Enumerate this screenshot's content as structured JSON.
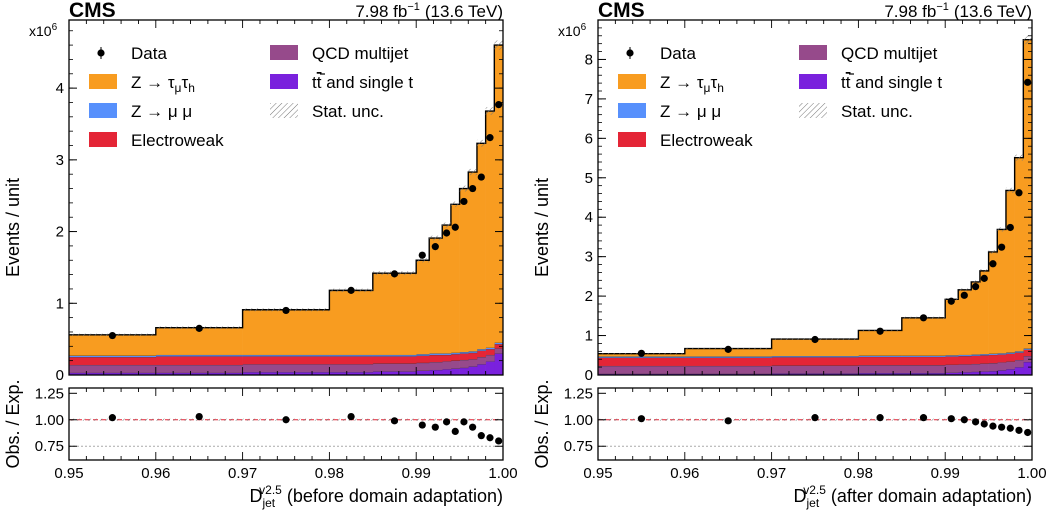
{
  "colors": {
    "ztautau": "#f89c20",
    "zmumu": "#5790fc",
    "electroweak": "#e42536",
    "qcd": "#964a8b",
    "ttbar": "#7a21dd",
    "data": "#000000",
    "ref_line": "#e42536",
    "grid_line": "#aaaaaa"
  },
  "legend": {
    "data": "Data",
    "ztautau": "Z → τ",
    "ztautau_sub1": "μ",
    "ztautau_tau2": "τ",
    "ztautau_sub2": "h",
    "zmumu": "Z → μ μ",
    "electroweak": "Electroweak",
    "qcd": "QCD multijet",
    "ttbar_t": "t",
    "ttbar_tbar": "t",
    "ttbar_rest": " and single t",
    "statunc": "Stat. unc."
  },
  "chart_data": [
    {
      "type": "bar",
      "stacked_histogram_with_ratio": true,
      "experiment": "CMS",
      "lumi": "7.98 fb",
      "lumi_exp": "−1",
      "energy": "(13.6 TeV)",
      "ylabel": "Events / unit",
      "yexponent_base": "x10",
      "yexponent": "6",
      "ratio_ylabel": "Obs. / Exp.",
      "xlabel_main": "D",
      "xlabel_sub": "jet",
      "xlabel_sup": "v2.5",
      "xlabel_rest": " (before domain adaptation)",
      "xlim": [
        0.95,
        1.0
      ],
      "ylim": [
        0,
        4.95
      ],
      "ratio_ylim": [
        0.62,
        1.3
      ],
      "xticks": [
        "0.95",
        "0.96",
        "0.97",
        "0.98",
        "0.99",
        "1.00"
      ],
      "yticks": [
        "0",
        "1",
        "2",
        "3",
        "4"
      ],
      "ratio_yticks": [
        "0.75",
        "1.00",
        "1.25"
      ],
      "bin_edges": [
        0.95,
        0.96,
        0.97,
        0.98,
        0.985,
        0.99,
        0.9915,
        0.993,
        0.994,
        0.995,
        0.996,
        0.997,
        0.998,
        0.999,
        1.0
      ],
      "series": [
        {
          "key": "ttbar",
          "values": [
            0.03,
            0.03,
            0.04,
            0.04,
            0.05,
            0.06,
            0.07,
            0.08,
            0.09,
            0.1,
            0.12,
            0.15,
            0.19,
            0.3
          ]
        },
        {
          "key": "qcd",
          "values": [
            0.11,
            0.11,
            0.11,
            0.11,
            0.11,
            0.11,
            0.11,
            0.11,
            0.11,
            0.11,
            0.1,
            0.1,
            0.09,
            0.07
          ]
        },
        {
          "key": "electroweak",
          "values": [
            0.11,
            0.12,
            0.11,
            0.11,
            0.1,
            0.1,
            0.1,
            0.09,
            0.09,
            0.09,
            0.09,
            0.09,
            0.08,
            0.06
          ]
        },
        {
          "key": "zmumu",
          "values": [
            0.02,
            0.02,
            0.02,
            0.02,
            0.02,
            0.02,
            0.02,
            0.02,
            0.02,
            0.02,
            0.02,
            0.02,
            0.02,
            0.02
          ]
        },
        {
          "key": "ztautau",
          "values": [
            0.29,
            0.38,
            0.63,
            0.9,
            1.14,
            1.31,
            1.61,
            1.79,
            2.07,
            2.28,
            2.5,
            2.87,
            3.3,
            4.15
          ]
        }
      ],
      "data_points": [
        {
          "x": 0.955,
          "y": 0.55
        },
        {
          "x": 0.965,
          "y": 0.65
        },
        {
          "x": 0.975,
          "y": 0.9
        },
        {
          "x": 0.9825,
          "y": 1.18
        },
        {
          "x": 0.9875,
          "y": 1.41
        },
        {
          "x": 0.9907,
          "y": 1.67
        },
        {
          "x": 0.9922,
          "y": 1.79
        },
        {
          "x": 0.9935,
          "y": 1.98
        },
        {
          "x": 0.9945,
          "y": 2.06
        },
        {
          "x": 0.9955,
          "y": 2.42
        },
        {
          "x": 0.9965,
          "y": 2.6
        },
        {
          "x": 0.9975,
          "y": 2.76
        },
        {
          "x": 0.9985,
          "y": 3.31
        },
        {
          "x": 0.9995,
          "y": 3.77
        }
      ],
      "ratio_points": [
        {
          "x": 0.955,
          "y": 1.02
        },
        {
          "x": 0.965,
          "y": 1.03
        },
        {
          "x": 0.975,
          "y": 1.0
        },
        {
          "x": 0.9825,
          "y": 1.03
        },
        {
          "x": 0.9875,
          "y": 0.99
        },
        {
          "x": 0.9907,
          "y": 0.95
        },
        {
          "x": 0.9922,
          "y": 0.93
        },
        {
          "x": 0.9935,
          "y": 0.98
        },
        {
          "x": 0.9945,
          "y": 0.89
        },
        {
          "x": 0.9955,
          "y": 0.98
        },
        {
          "x": 0.9965,
          "y": 0.93
        },
        {
          "x": 0.9975,
          "y": 0.85
        },
        {
          "x": 0.9985,
          "y": 0.83
        },
        {
          "x": 0.9995,
          "y": 0.8
        }
      ]
    },
    {
      "type": "bar",
      "stacked_histogram_with_ratio": true,
      "experiment": "CMS",
      "lumi": "7.98 fb",
      "lumi_exp": "−1",
      "energy": "(13.6 TeV)",
      "ylabel": "Events / unit",
      "yexponent_base": "x10",
      "yexponent": "6",
      "ratio_ylabel": "Obs. / Exp.",
      "xlabel_main": "D",
      "xlabel_sub": "jet",
      "xlabel_sup": "v2.5",
      "xlabel_rest": " (after domain adaptation)",
      "xlim": [
        0.95,
        1.0
      ],
      "ylim": [
        0,
        9.0
      ],
      "ratio_ylim": [
        0.62,
        1.3
      ],
      "xticks": [
        "0.95",
        "0.96",
        "0.97",
        "0.98",
        "0.99",
        "1.00"
      ],
      "yticks": [
        "0",
        "1",
        "2",
        "3",
        "4",
        "5",
        "6",
        "7",
        "8"
      ],
      "ratio_yticks": [
        "0.75",
        "1.00",
        "1.25"
      ],
      "bin_edges": [
        0.95,
        0.96,
        0.97,
        0.98,
        0.985,
        0.99,
        0.9915,
        0.993,
        0.994,
        0.995,
        0.996,
        0.997,
        0.998,
        0.999,
        1.0
      ],
      "series": [
        {
          "key": "ttbar",
          "values": [
            0.03,
            0.03,
            0.04,
            0.05,
            0.05,
            0.06,
            0.07,
            0.08,
            0.09,
            0.1,
            0.12,
            0.15,
            0.2,
            0.33
          ]
        },
        {
          "key": "qcd",
          "values": [
            0.2,
            0.2,
            0.2,
            0.2,
            0.2,
            0.2,
            0.2,
            0.2,
            0.2,
            0.2,
            0.2,
            0.19,
            0.18,
            0.15
          ]
        },
        {
          "key": "electroweak",
          "values": [
            0.21,
            0.21,
            0.21,
            0.21,
            0.21,
            0.21,
            0.21,
            0.21,
            0.21,
            0.21,
            0.2,
            0.2,
            0.19,
            0.16
          ]
        },
        {
          "key": "zmumu",
          "values": [
            0.03,
            0.03,
            0.03,
            0.03,
            0.03,
            0.03,
            0.03,
            0.03,
            0.03,
            0.03,
            0.03,
            0.03,
            0.03,
            0.03
          ]
        },
        {
          "key": "ztautau",
          "values": [
            0.07,
            0.2,
            0.43,
            0.64,
            0.96,
            1.42,
            1.65,
            1.84,
            2.11,
            2.58,
            3.14,
            4.11,
            4.91,
            7.83
          ]
        }
      ],
      "data_points": [
        {
          "x": 0.955,
          "y": 0.55
        },
        {
          "x": 0.965,
          "y": 0.65
        },
        {
          "x": 0.975,
          "y": 0.9
        },
        {
          "x": 0.9825,
          "y": 1.11
        },
        {
          "x": 0.9875,
          "y": 1.45
        },
        {
          "x": 0.9907,
          "y": 1.87
        },
        {
          "x": 0.9922,
          "y": 2.02
        },
        {
          "x": 0.9935,
          "y": 2.24
        },
        {
          "x": 0.9945,
          "y": 2.45
        },
        {
          "x": 0.9955,
          "y": 2.82
        },
        {
          "x": 0.9965,
          "y": 3.24
        },
        {
          "x": 0.9975,
          "y": 3.74
        },
        {
          "x": 0.9985,
          "y": 4.62
        },
        {
          "x": 0.9995,
          "y": 7.42
        }
      ],
      "ratio_points": [
        {
          "x": 0.955,
          "y": 1.01
        },
        {
          "x": 0.965,
          "y": 0.99
        },
        {
          "x": 0.975,
          "y": 1.02
        },
        {
          "x": 0.9825,
          "y": 1.02
        },
        {
          "x": 0.9875,
          "y": 1.02
        },
        {
          "x": 0.9907,
          "y": 1.01
        },
        {
          "x": 0.9922,
          "y": 1.0
        },
        {
          "x": 0.9935,
          "y": 0.98
        },
        {
          "x": 0.9945,
          "y": 0.96
        },
        {
          "x": 0.9955,
          "y": 0.94
        },
        {
          "x": 0.9965,
          "y": 0.93
        },
        {
          "x": 0.9975,
          "y": 0.92
        },
        {
          "x": 0.9985,
          "y": 0.9
        },
        {
          "x": 0.9995,
          "y": 0.88
        }
      ]
    }
  ]
}
